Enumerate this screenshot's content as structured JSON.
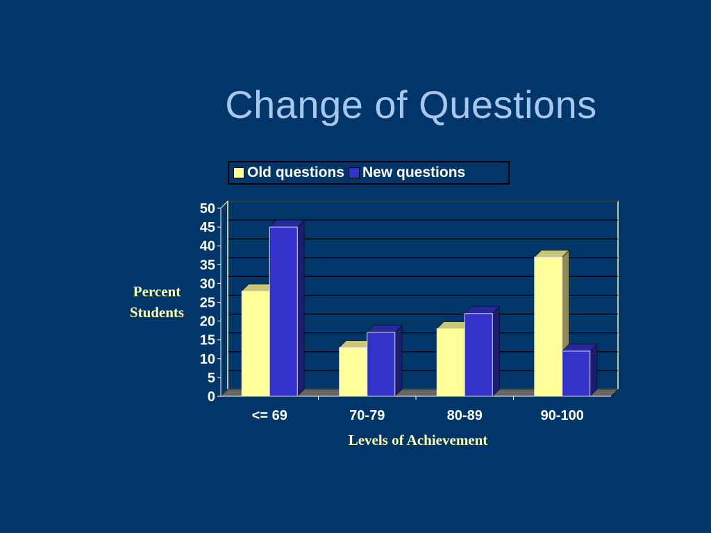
{
  "slide": {
    "title": "Change of Questions",
    "background": "#01366a"
  },
  "chart_data": {
    "type": "bar",
    "style": "3d-clustered-column",
    "title": "Change of Questions",
    "xlabel": "Levels of Achievement",
    "ylabel": "Percent Students",
    "categories": [
      "<= 69",
      "70-79",
      "80-89",
      "90-100"
    ],
    "series": [
      {
        "name": "Old questions",
        "values": [
          28,
          13,
          18,
          37
        ],
        "color": "#ffff99"
      },
      {
        "name": "New questions",
        "values": [
          45,
          17,
          22,
          12
        ],
        "color": "#3333cc"
      }
    ],
    "ylim": [
      0,
      50
    ],
    "yticks": [
      0,
      5,
      10,
      15,
      20,
      25,
      30,
      35,
      40,
      45,
      50
    ],
    "grid": true,
    "legend": {
      "position": "top",
      "entries": [
        "Old questions",
        "New questions"
      ]
    },
    "colors": {
      "gridline": "#000000",
      "plot_border": "#ffff99",
      "floor": "#666666",
      "tick_text": "#ffffff",
      "axis_title": "#ffffaa"
    }
  }
}
